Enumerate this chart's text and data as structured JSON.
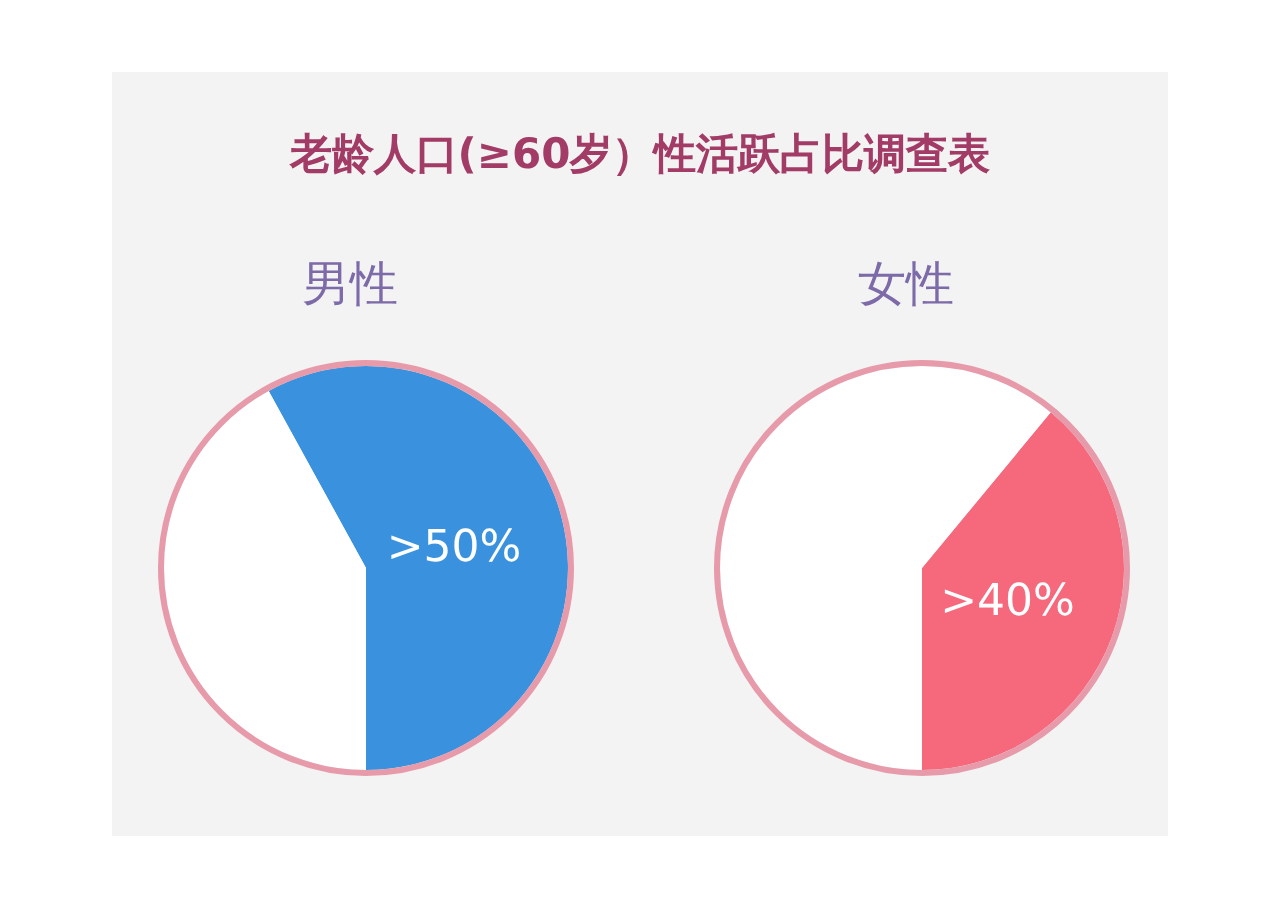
{
  "chart_data": [
    {
      "type": "pie",
      "title": "男性",
      "annotations": [
        "老龄人口(≥60岁）性活跃占比调查表"
      ],
      "categories": [
        null,
        null
      ],
      "values": [
        58,
        42
      ],
      "colors": [
        "#3a92de",
        "#ffffff"
      ],
      "value_labels": [
        ">50%",
        null
      ]
    },
    {
      "type": "pie",
      "title": "女性",
      "categories": [
        null,
        null
      ],
      "values": [
        39,
        61
      ],
      "colors": [
        "#f6687c",
        "#ffffff"
      ],
      "value_labels": [
        ">40%",
        null
      ]
    }
  ]
}
